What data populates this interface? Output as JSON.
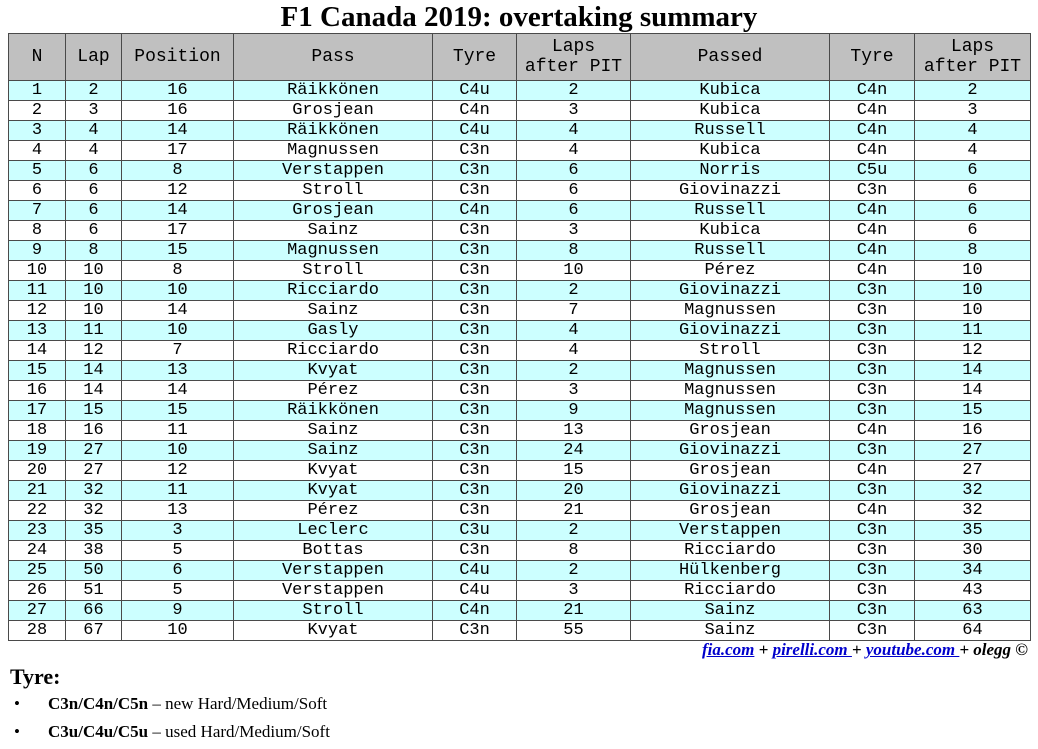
{
  "title": "F1 Canada 2019: overtaking summary",
  "table": {
    "headers": {
      "n": "N",
      "lap": "Lap",
      "position": "Position",
      "pass": "Pass",
      "tyre": "Tyre",
      "laps_after_pit_1": "Laps",
      "laps_after_pit_2": "after PIT",
      "passed": "Passed",
      "tyre2": "Tyre",
      "laps_after_pit2_1": "Laps",
      "laps_after_pit2_2": "after PIT"
    },
    "rows": [
      [
        "1",
        "2",
        "16",
        "Räikkönen",
        "C4u",
        "2",
        "Kubica",
        "C4n",
        "2"
      ],
      [
        "2",
        "3",
        "16",
        "Grosjean",
        "C4n",
        "3",
        "Kubica",
        "C4n",
        "3"
      ],
      [
        "3",
        "4",
        "14",
        "Räikkönen",
        "C4u",
        "4",
        "Russell",
        "C4n",
        "4"
      ],
      [
        "4",
        "4",
        "17",
        "Magnussen",
        "C3n",
        "4",
        "Kubica",
        "C4n",
        "4"
      ],
      [
        "5",
        "6",
        "8",
        "Verstappen",
        "C3n",
        "6",
        "Norris",
        "C5u",
        "6"
      ],
      [
        "6",
        "6",
        "12",
        "Stroll",
        "C3n",
        "6",
        "Giovinazzi",
        "C3n",
        "6"
      ],
      [
        "7",
        "6",
        "14",
        "Grosjean",
        "C4n",
        "6",
        "Russell",
        "C4n",
        "6"
      ],
      [
        "8",
        "6",
        "17",
        "Sainz",
        "C3n",
        "3",
        "Kubica",
        "C4n",
        "6"
      ],
      [
        "9",
        "8",
        "15",
        "Magnussen",
        "C3n",
        "8",
        "Russell",
        "C4n",
        "8"
      ],
      [
        "10",
        "10",
        "8",
        "Stroll",
        "C3n",
        "10",
        "Pérez",
        "C4n",
        "10"
      ],
      [
        "11",
        "10",
        "10",
        "Ricciardo",
        "C3n",
        "2",
        "Giovinazzi",
        "C3n",
        "10"
      ],
      [
        "12",
        "10",
        "14",
        "Sainz",
        "C3n",
        "7",
        "Magnussen",
        "C3n",
        "10"
      ],
      [
        "13",
        "11",
        "10",
        "Gasly",
        "C3n",
        "4",
        "Giovinazzi",
        "C3n",
        "11"
      ],
      [
        "14",
        "12",
        "7",
        "Ricciardo",
        "C3n",
        "4",
        "Stroll",
        "C3n",
        "12"
      ],
      [
        "15",
        "14",
        "13",
        "Kvyat",
        "C3n",
        "2",
        "Magnussen",
        "C3n",
        "14"
      ],
      [
        "16",
        "14",
        "14",
        "Pérez",
        "C3n",
        "3",
        "Magnussen",
        "C3n",
        "14"
      ],
      [
        "17",
        "15",
        "15",
        "Räikkönen",
        "C3n",
        "9",
        "Magnussen",
        "C3n",
        "15"
      ],
      [
        "18",
        "16",
        "11",
        "Sainz",
        "C3n",
        "13",
        "Grosjean",
        "C4n",
        "16"
      ],
      [
        "19",
        "27",
        "10",
        "Sainz",
        "C3n",
        "24",
        "Giovinazzi",
        "C3n",
        "27"
      ],
      [
        "20",
        "27",
        "12",
        "Kvyat",
        "C3n",
        "15",
        "Grosjean",
        "C4n",
        "27"
      ],
      [
        "21",
        "32",
        "11",
        "Kvyat",
        "C3n",
        "20",
        "Giovinazzi",
        "C3n",
        "32"
      ],
      [
        "22",
        "32",
        "13",
        "Pérez",
        "C3n",
        "21",
        "Grosjean",
        "C4n",
        "32"
      ],
      [
        "23",
        "35",
        "3",
        "Leclerc",
        "C3u",
        "2",
        "Verstappen",
        "C3n",
        "35"
      ],
      [
        "24",
        "38",
        "5",
        "Bottas",
        "C3n",
        "8",
        "Ricciardo",
        "C3n",
        "30"
      ],
      [
        "25",
        "50",
        "6",
        "Verstappen",
        "C4u",
        "2",
        "Hülkenberg",
        "C3n",
        "34"
      ],
      [
        "26",
        "51",
        "5",
        "Verstappen",
        "C4u",
        "3",
        "Ricciardo",
        "C3n",
        "43"
      ],
      [
        "27",
        "66",
        "9",
        "Stroll",
        "C4n",
        "21",
        "Sainz",
        "C3n",
        "63"
      ],
      [
        "28",
        "67",
        "10",
        "Kvyat",
        "C3n",
        "55",
        "Sainz",
        "C3n",
        "64"
      ]
    ]
  },
  "credits": {
    "link1": "fia.com",
    "sep1": " + ",
    "link2": "pirelli.com ",
    "sep2": " + ",
    "link3": "youtube.com ",
    "sep3": " + olegg ©"
  },
  "legend": {
    "title": "Tyre:",
    "bullet": "•",
    "items": [
      {
        "code": "C3n/C4n/C5n",
        "desc": " – new Hard/Medium/Soft"
      },
      {
        "code": "C3u/C4u/C5u",
        "desc": " – used Hard/Medium/Soft"
      }
    ]
  },
  "colors": {
    "header_bg": "#c0c0c0",
    "row_alt_bg": "#ccffff",
    "link": "#0000cc"
  }
}
